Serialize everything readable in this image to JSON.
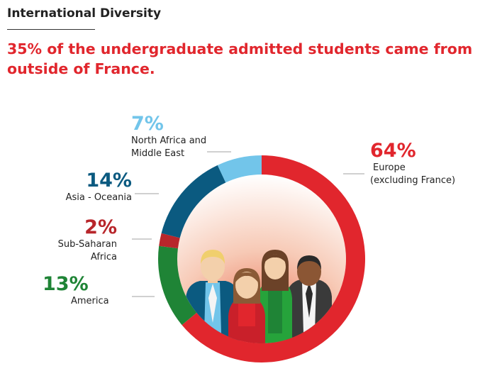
{
  "header": {
    "title": "International Diversity",
    "subtitle": "35% of the undergraduate admitted students came from outside of France."
  },
  "chart_data": {
    "type": "pie",
    "style": "donut",
    "slices": [
      {
        "label": "Europe (excluding France)",
        "label_lines": [
          "Europe",
          "(excluding France)"
        ],
        "value": 64,
        "value_text": "64%",
        "color": "#e1262d"
      },
      {
        "label": "America",
        "label_lines": [
          "America"
        ],
        "value": 13,
        "value_text": "13%",
        "color": "#1f8436"
      },
      {
        "label": "Sub-Saharan Africa",
        "label_lines": [
          "Sub-Saharan",
          "Africa"
        ],
        "value": 2,
        "value_text": "2%",
        "color": "#b8262b"
      },
      {
        "label": "Asia - Oceania",
        "label_lines": [
          "Asia - Oceania"
        ],
        "value": 14,
        "value_text": "14%",
        "color": "#0b5a80"
      },
      {
        "label": "North Africa and Middle East",
        "label_lines": [
          "North Africa and",
          "Middle East"
        ],
        "value": 7,
        "value_text": "7%",
        "color": "#72c5ea"
      }
    ]
  }
}
